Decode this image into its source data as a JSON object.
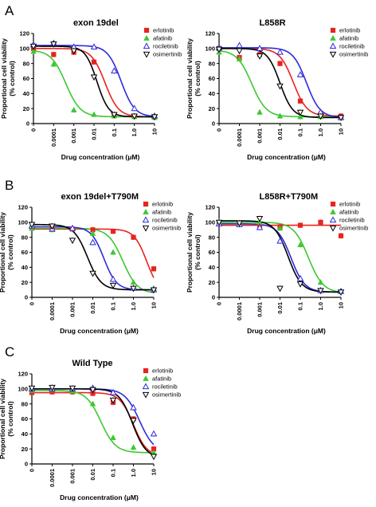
{
  "figure": {
    "panel_letters": [
      "A",
      "B",
      "C"
    ],
    "drugs": [
      "erlotinib",
      "afatinib",
      "rociletinib",
      "osimertinib"
    ],
    "colors": {
      "erlotinib": "#e8231f",
      "afatinib": "#3cc832",
      "rociletinib": "#2d2bd8",
      "osimertinib": "#000000"
    },
    "markers": {
      "erlotinib": "square",
      "afatinib": "triangle-up",
      "rociletinib": "triangle-up-open",
      "osimertinib": "triangle-down-open"
    }
  },
  "chart_data": [
    {
      "panel": "A",
      "title": "exon 19del",
      "type": "scatter",
      "xlabel": "Drug concentration (μM)",
      "ylabel": "Proportional cell viability (% control)",
      "xscale": "log",
      "xticks": [
        "0",
        "0.0001",
        "0.001",
        "0.01",
        "0.1",
        "1.0",
        "10"
      ],
      "ylim": [
        0,
        120
      ],
      "yticks": [
        "0",
        "20",
        "40",
        "60",
        "80",
        "100",
        "120"
      ],
      "legend": "top-right",
      "series": [
        {
          "name": "erlotinib",
          "x": [
            0,
            0.0001,
            0.001,
            0.01,
            0.1,
            1,
            10
          ],
          "y": [
            100,
            92,
            95,
            82,
            12,
            10,
            9
          ],
          "ic50": 0.035,
          "hill": 1.3,
          "top": 100,
          "bottom": 9
        },
        {
          "name": "afatinib",
          "x": [
            0,
            0.0001,
            0.001,
            0.01,
            0.1,
            1,
            10
          ],
          "y": [
            96,
            79,
            18,
            12,
            10,
            9,
            8
          ],
          "ic50": 0.0004,
          "hill": 1.2,
          "top": 98,
          "bottom": 9
        },
        {
          "name": "rociletinib",
          "x": [
            0,
            0.0001,
            0.001,
            0.01,
            0.1,
            1,
            10
          ],
          "y": [
            105,
            107,
            102,
            102,
            70,
            20,
            10
          ],
          "ic50": 0.22,
          "hill": 1.3,
          "top": 104,
          "bottom": 9
        },
        {
          "name": "osimertinib",
          "x": [
            0,
            0.0001,
            0.001,
            0.01,
            0.1,
            1,
            10
          ],
          "y": [
            103,
            106,
            97,
            62,
            12,
            10,
            9
          ],
          "ic50": 0.014,
          "hill": 1.5,
          "top": 103,
          "bottom": 9
        }
      ]
    },
    {
      "panel": "A",
      "title": "L858R",
      "type": "scatter",
      "xlabel": "Drug concentration (μM)",
      "ylabel": "Proportional cell viability (% control)",
      "xscale": "log",
      "xticks": [
        "0",
        "0.0001",
        "0.001",
        "0.01",
        "0.1",
        "1.0",
        "10"
      ],
      "ylim": [
        0,
        120
      ],
      "yticks": [
        "0",
        "20",
        "40",
        "60",
        "80",
        "100",
        "120"
      ],
      "legend": "top-right",
      "series": [
        {
          "name": "erlotinib",
          "x": [
            0,
            0.0001,
            0.001,
            0.01,
            0.1,
            1,
            10
          ],
          "y": [
            100,
            88,
            92,
            80,
            30,
            12,
            10
          ],
          "ic50": 0.045,
          "hill": 1.3,
          "top": 100,
          "bottom": 10
        },
        {
          "name": "afatinib",
          "x": [
            0,
            0.0001,
            0.001,
            0.01,
            0.1,
            1,
            10
          ],
          "y": [
            95,
            86,
            15,
            10,
            9,
            9,
            8
          ],
          "ic50": 0.0004,
          "hill": 1.2,
          "top": 98,
          "bottom": 9
        },
        {
          "name": "rociletinib",
          "x": [
            0,
            0.0001,
            0.001,
            0.01,
            0.1,
            1,
            10
          ],
          "y": [
            101,
            104,
            100,
            95,
            65,
            15,
            8
          ],
          "ic50": 0.2,
          "hill": 1.3,
          "top": 101,
          "bottom": 8
        },
        {
          "name": "osimertinib",
          "x": [
            0,
            0.0001,
            0.001,
            0.01,
            0.1,
            1,
            10
          ],
          "y": [
            99,
            97,
            90,
            50,
            15,
            10,
            8
          ],
          "ic50": 0.01,
          "hill": 1.4,
          "top": 100,
          "bottom": 8
        }
      ]
    },
    {
      "panel": "B",
      "title": "exon 19del+T790M",
      "type": "scatter",
      "xlabel": "Drug concentration (μM)",
      "ylabel": "Proportional cell viability (% control)",
      "xscale": "log",
      "xticks": [
        "0",
        "0.0001",
        "0.001",
        "0.01",
        "0.1",
        "1.0",
        "10"
      ],
      "ylim": [
        0,
        120
      ],
      "yticks": [
        "0",
        "20",
        "40",
        "60",
        "80",
        "100",
        "120"
      ],
      "legend": "top-right",
      "series": [
        {
          "name": "erlotinib",
          "x": [
            0,
            0.0001,
            0.001,
            0.01,
            0.1,
            1,
            10
          ],
          "y": [
            92,
            92,
            91,
            90,
            88,
            80,
            38
          ],
          "ic50": 4.5,
          "hill": 1.4,
          "top": 91,
          "bottom": 5
        },
        {
          "name": "afatinib",
          "x": [
            0,
            0.0001,
            0.001,
            0.01,
            0.1,
            1,
            10
          ],
          "y": [
            92,
            90,
            92,
            85,
            60,
            20,
            12
          ],
          "ic50": 0.3,
          "hill": 1.2,
          "top": 92,
          "bottom": 5
        },
        {
          "name": "rociletinib",
          "x": [
            0,
            0.0001,
            0.001,
            0.01,
            0.1,
            1,
            10
          ],
          "y": [
            95,
            91,
            92,
            73,
            24,
            12,
            10
          ],
          "ic50": 0.035,
          "hill": 1.4,
          "top": 94,
          "bottom": 10
        },
        {
          "name": "osimertinib",
          "x": [
            0,
            0.0001,
            0.001,
            0.01,
            0.1,
            1,
            10
          ],
          "y": [
            97,
            95,
            76,
            32,
            16,
            12,
            10
          ],
          "ic50": 0.0055,
          "hill": 1.3,
          "top": 97,
          "bottom": 10
        }
      ]
    },
    {
      "panel": "B",
      "title": "L858R+T790M",
      "type": "scatter",
      "xlabel": "Drug concentration (μM)",
      "ylabel": "Proportional cell viability (% control)",
      "xscale": "log",
      "xticks": [
        "0",
        "0.0001",
        "0.001",
        "0.01",
        "0.1",
        "1.0",
        "10"
      ],
      "ylim": [
        0,
        120
      ],
      "yticks": [
        "0",
        "20",
        "40",
        "60",
        "80",
        "100",
        "120"
      ],
      "legend": "top-right",
      "series": [
        {
          "name": "erlotinib",
          "x": [
            0,
            0.0001,
            0.001,
            0.01,
            0.1,
            1,
            10
          ],
          "y": [
            99,
            97,
            96,
            94,
            96,
            100,
            82
          ],
          "flat": 96
        },
        {
          "name": "afatinib",
          "x": [
            0,
            0.0001,
            0.001,
            0.01,
            0.1,
            1,
            10
          ],
          "y": [
            101,
            99,
            100,
            92,
            70,
            20,
            8
          ],
          "ic50": 0.25,
          "hill": 1.2,
          "top": 100,
          "bottom": 6
        },
        {
          "name": "rociletinib",
          "x": [
            0,
            0.0001,
            0.001,
            0.01,
            0.1,
            1,
            10
          ],
          "y": [
            98,
            97,
            93,
            75,
            25,
            9,
            8
          ],
          "ic50": 0.035,
          "hill": 1.3,
          "top": 98,
          "bottom": 7
        },
        {
          "name": "osimertinib",
          "x": [
            0,
            0.0001,
            0.001,
            0.01,
            0.1,
            1,
            10
          ],
          "y": [
            100,
            99,
            105,
            12,
            18,
            9,
            7
          ],
          "ic50": 0.025,
          "hill": 1.3,
          "top": 102,
          "bottom": 7
        }
      ]
    },
    {
      "panel": "C",
      "title": "Wild Type",
      "type": "scatter",
      "xlabel": "Drug concentration (μM)",
      "ylabel": "Proportional cell viability (% control)",
      "xscale": "log",
      "xticks": [
        "0",
        "0.0001",
        "0.001",
        "0.01",
        "0.1",
        "1.0",
        "10"
      ],
      "ylim": [
        0,
        120
      ],
      "yticks": [
        "0",
        "20",
        "40",
        "60",
        "80",
        "100",
        "120"
      ],
      "legend": "top-right",
      "series": [
        {
          "name": "erlotinib",
          "x": [
            0,
            0.0001,
            0.001,
            0.01,
            0.1,
            1,
            10
          ],
          "y": [
            95,
            96,
            96,
            94,
            82,
            60,
            20
          ],
          "ic50": 1.0,
          "hill": 1.3,
          "top": 95,
          "bottom": 10
        },
        {
          "name": "afatinib",
          "x": [
            0,
            0.0001,
            0.001,
            0.01,
            0.1,
            1,
            10
          ],
          "y": [
            98,
            99,
            97,
            80,
            35,
            22,
            15
          ],
          "ic50": 0.025,
          "hill": 1.2,
          "top": 98,
          "bottom": 15
        },
        {
          "name": "rociletinib",
          "x": [
            0,
            0.0001,
            0.001,
            0.01,
            0.1,
            1,
            10
          ],
          "y": [
            100,
            100,
            100,
            101,
            95,
            75,
            40
          ],
          "ic50": 2.0,
          "hill": 1.2,
          "top": 100,
          "bottom": 15
        },
        {
          "name": "osimertinib",
          "x": [
            0,
            0.0001,
            0.001,
            0.01,
            0.1,
            1,
            10
          ],
          "y": [
            101,
            102,
            101,
            99,
            85,
            58,
            10
          ],
          "ic50": 0.9,
          "hill": 1.3,
          "top": 100,
          "bottom": 8
        }
      ]
    }
  ]
}
